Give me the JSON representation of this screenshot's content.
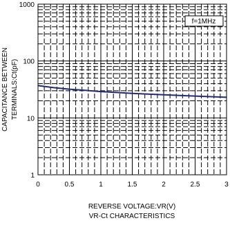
{
  "chart_data": {
    "type": "line",
    "title": "",
    "caption": "VR-Ct CHARACTERISTICS",
    "xlabel": "REVERSE VOLTAGE:VR(V)",
    "ylabel_lines": [
      "CAPACITANCE BETWEEN",
      "TERMINALS:Ct(pF)"
    ],
    "xlim": [
      0,
      3
    ],
    "ylim": [
      1,
      1000
    ],
    "yscale": "log",
    "x_ticks": [
      0,
      0.5,
      1,
      1.5,
      2,
      2.5,
      3
    ],
    "x_tick_labels": [
      "0",
      "0.5",
      "1",
      "1.5",
      "2",
      "2.5",
      "3"
    ],
    "y_ticks": [
      1,
      10,
      100,
      1000
    ],
    "y_tick_labels": [
      "1",
      "10",
      "100",
      "1000"
    ],
    "grid": true,
    "annotation": "f=1MHz",
    "series": [
      {
        "color": "#1f2a7a",
        "x": [
          0,
          0.25,
          0.5,
          0.75,
          1,
          1.25,
          1.5,
          1.75,
          2,
          2.25,
          2.5,
          2.75,
          3
        ],
        "y": [
          37,
          34,
          32,
          30.5,
          29,
          28,
          27,
          26.2,
          25.5,
          24.8,
          24.2,
          23.6,
          23
        ]
      }
    ]
  }
}
